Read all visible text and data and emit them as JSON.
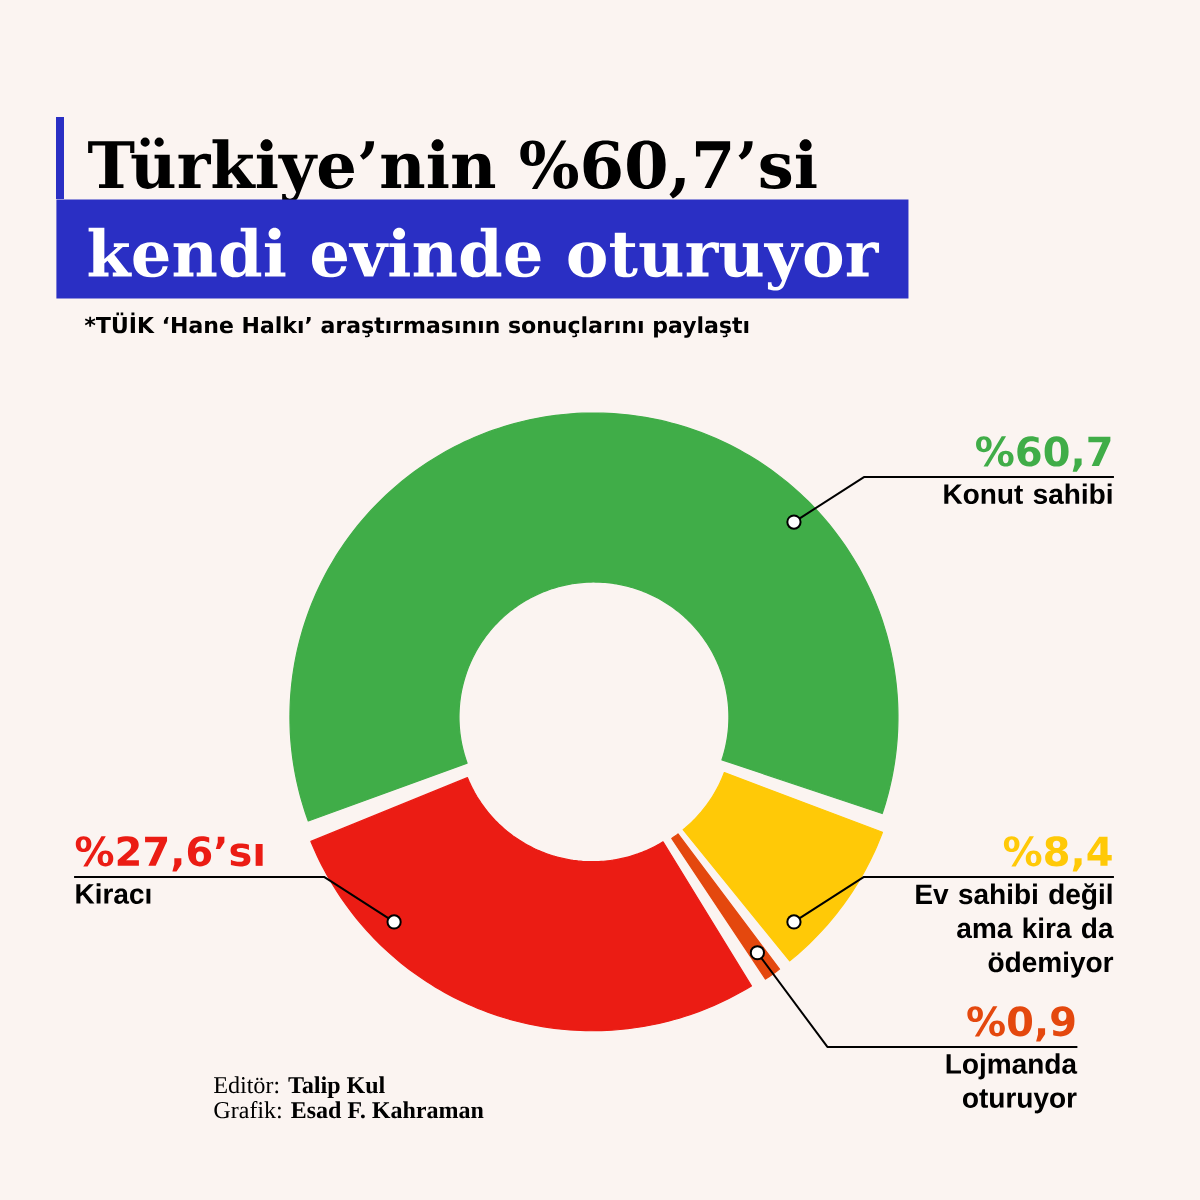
{
  "chart_data": {
    "type": "donut",
    "title": "Türkiye’nin %60,7’si",
    "subtitle": "kendi evinde oturuyor",
    "categories": [
      "Konut sahibi",
      "Ev sahibi değil ama kira da ödemiyor",
      "Lojmanda oturuyor",
      "Kiracı"
    ],
    "values": [
      60.7,
      8.4,
      0.9,
      27.6
    ],
    "colors": [
      "#40ad48",
      "#ffc907",
      "#e4480e",
      "#eb1c14"
    ],
    "value_labels": [
      "%60,7",
      "%8,4",
      "%0,9",
      "%27,6’sı"
    ],
    "annotations": [
      "*TÜİK ‘Hane Halkı’ araştırmasının sonuçlarını paylaştı",
      "Editör: **Talip Kul**",
      "Grafik: **Esad F. Kahraman**"
    ]
  }
}
